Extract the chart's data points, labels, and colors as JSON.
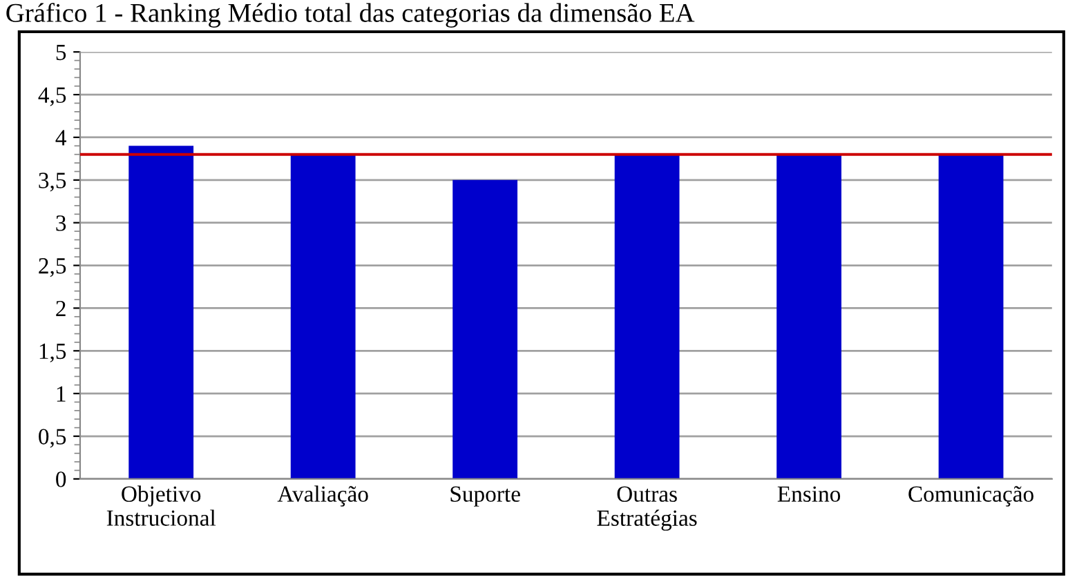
{
  "chart_data": {
    "type": "bar",
    "title": "Gráfico 1 - Ranking Médio total das categorias da dimensão EA",
    "categories": [
      "Objetivo\nInstrucional",
      "Avaliação",
      "Suporte",
      "Outras\nEstratégias",
      "Ensino",
      "Comunicação"
    ],
    "values": [
      3.9,
      3.8,
      3.5,
      3.8,
      3.8,
      3.8
    ],
    "color": "#0000cc",
    "ylim": [
      0,
      5
    ],
    "yticks": [
      0,
      {
        "value": 0.5,
        "label": "0,5"
      },
      1,
      {
        "value": 1.5,
        "label": "1,5"
      },
      2,
      {
        "value": 2.5,
        "label": "2,5"
      },
      3,
      {
        "value": 3.5,
        "label": "3,5"
      },
      4,
      {
        "value": 4.5,
        "label": "4,5"
      },
      5
    ],
    "ref_lines": [
      {
        "axis": "y",
        "value": 3.8,
        "color": "#cc0000"
      }
    ],
    "grid": "y"
  }
}
